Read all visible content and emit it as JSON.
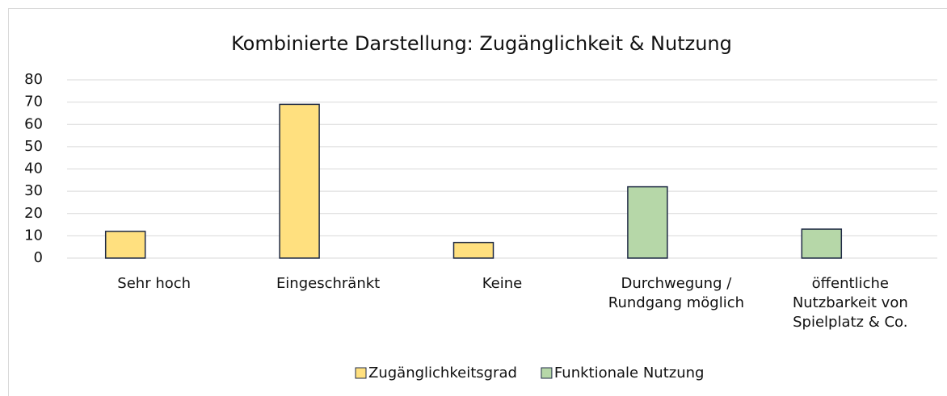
{
  "chart_data": {
    "type": "bar",
    "title": "Kombinierte Darstellung: Zugänglichkeit & Nutzung",
    "categories": [
      "Sehr hoch",
      "Eingeschränkt",
      "Keine",
      "Durchwegung / Rundgang möglich",
      "öffentliche Nutzbarkeit von Spielplatz & Co."
    ],
    "series": [
      {
        "name": "Zugänglichkeitsgrad",
        "color": "#FFE07F",
        "values": [
          12,
          69,
          7,
          null,
          null
        ]
      },
      {
        "name": "Funktionale Nutzung",
        "color": "#B6D7A8",
        "values": [
          null,
          null,
          null,
          32,
          13
        ]
      }
    ],
    "ylim": [
      0,
      80
    ],
    "yticks": [
      0,
      10,
      20,
      30,
      40,
      50,
      60,
      70,
      80
    ],
    "grid": true,
    "legend": "bottom"
  }
}
